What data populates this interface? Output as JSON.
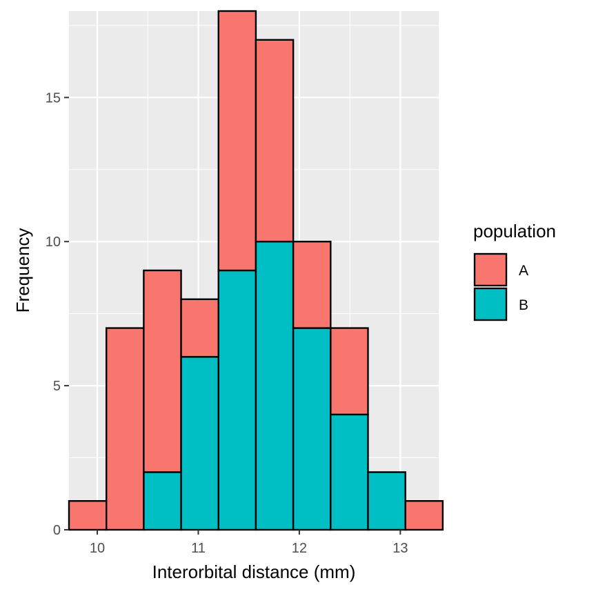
{
  "chart_data": {
    "type": "bar",
    "stacked": true,
    "xlabel": "Interorbital distance (mm)",
    "ylabel": "Frequency",
    "xlim": [
      9.72,
      13.38
    ],
    "ylim": [
      0,
      18
    ],
    "x_ticks": [
      10,
      11,
      12,
      13
    ],
    "y_ticks": [
      0,
      5,
      10,
      15
    ],
    "grid": true,
    "legend": {
      "title": "population",
      "position": "right"
    },
    "bin_edges": [
      9.72,
      10.09,
      10.46,
      10.83,
      11.2,
      11.57,
      11.94,
      12.31,
      12.68,
      13.05,
      13.42
    ],
    "series": [
      {
        "name": "B",
        "color": "#00BFC4",
        "values": [
          0,
          0,
          2,
          6,
          9,
          10,
          7,
          4,
          2,
          0
        ]
      },
      {
        "name": "A",
        "color": "#F8766D",
        "values": [
          1,
          7,
          7,
          2,
          9,
          7,
          3,
          3,
          0,
          1
        ]
      }
    ],
    "legend_order": [
      "A",
      "B"
    ],
    "panel_color": "#EBEBEB"
  }
}
